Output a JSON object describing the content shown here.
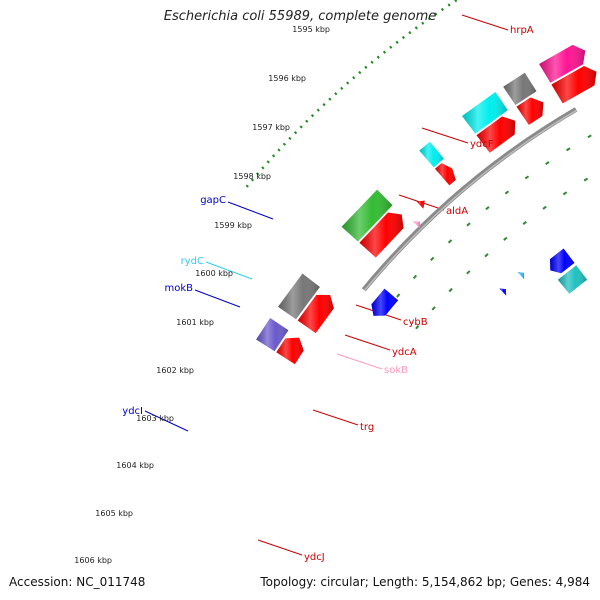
{
  "title": "Escherichia coli 55989, complete genome",
  "footer": {
    "accession": "Accession: NC_011748",
    "summary": "Topology: circular; Length: 5,154,862 bp; Genes: 4,984"
  },
  "ruler": {
    "ticks": [
      "1595 kbp",
      "1596 kbp",
      "1597 kbp",
      "1598 kbp",
      "1599 kbp",
      "1600 kbp",
      "1601 kbp",
      "1602 kbp",
      "1603 kbp",
      "1604 kbp",
      "1605 kbp",
      "1606 kbp"
    ]
  },
  "colors": {
    "backbone": "#8a8a8a",
    "ruler_dots": "#228b22",
    "strand_ticks": "#2e8b2e"
  },
  "labels": {
    "right": [
      {
        "name": "hrpA",
        "color": "#cc0000"
      },
      {
        "name": "ydcF",
        "color": "#cc0000"
      },
      {
        "name": "aldA",
        "color": "#cc0000"
      },
      {
        "name": "cybB",
        "color": "#cc0000"
      },
      {
        "name": "ydcA",
        "color": "#cc0000"
      },
      {
        "name": "sokB",
        "color": "#ff99bb"
      },
      {
        "name": "trg",
        "color": "#cc0000"
      },
      {
        "name": "ydcJ",
        "color": "#cc0000"
      }
    ],
    "left": [
      {
        "name": "gapC",
        "color": "#0000cc"
      },
      {
        "name": "rydC",
        "color": "#33ccee"
      },
      {
        "name": "mokB",
        "color": "#0000cc"
      },
      {
        "name": "ydcI",
        "color": "#0000cc"
      }
    ]
  },
  "features": [
    {
      "color": "#ff0000"
    },
    {
      "color": "#ff1493"
    },
    {
      "color": "#ff0000"
    },
    {
      "color": "#777777"
    },
    {
      "color": "#ff0000"
    },
    {
      "color": "#00eeee"
    },
    {
      "color": "#20c0c0"
    },
    {
      "color": "#0000ff"
    },
    {
      "color": "#ff0000"
    },
    {
      "color": "#00eeee"
    },
    {
      "color": "#33bbff"
    },
    {
      "color": "#0000ff"
    },
    {
      "color": "#ff0000"
    },
    {
      "color": "#ff99cc"
    },
    {
      "color": "#ff0000"
    },
    {
      "color": "#33bb33"
    },
    {
      "color": "#0000ff"
    },
    {
      "color": "#ff0000"
    },
    {
      "color": "#777777"
    },
    {
      "color": "#ff0000"
    },
    {
      "color": "#6a5acd"
    }
  ]
}
